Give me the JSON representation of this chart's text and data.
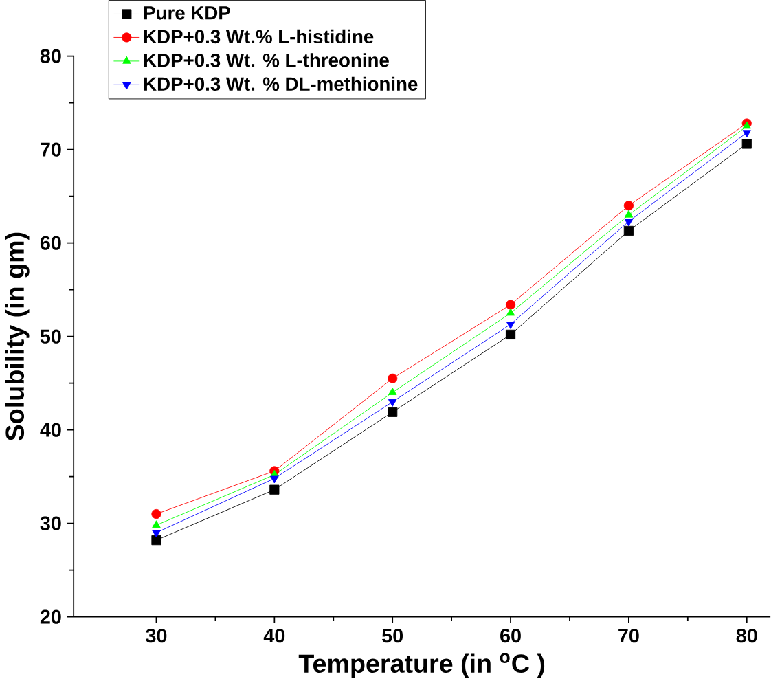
{
  "chart_data": {
    "type": "line",
    "xlabel": "Temperature (in  $^{o}$C )",
    "ylabel": "Solubility (in gm)",
    "x": [
      30,
      40,
      50,
      60,
      70,
      80
    ],
    "series": [
      {
        "name": "Pure KDP",
        "color": "#000000",
        "marker": "square",
        "values": [
          28.2,
          33.6,
          41.9,
          50.2,
          61.3,
          70.6
        ]
      },
      {
        "name": "KDP+0.3 Wt.% L-histidine",
        "color": "#ff0000",
        "marker": "circle",
        "values": [
          31.0,
          35.6,
          45.5,
          53.4,
          64.0,
          72.8
        ]
      },
      {
        "name": "KDP+0.3 Wt. % L-threonine",
        "color": "#00ff00",
        "marker": "triangle",
        "values": [
          29.8,
          35.2,
          44.0,
          52.5,
          63.0,
          72.5
        ]
      },
      {
        "name": "KDP+0.3 Wt. % DL-methionine",
        "color": "#0000ff",
        "marker": "triangle-down",
        "values": [
          29.0,
          34.8,
          43.0,
          51.3,
          62.3,
          71.8
        ]
      }
    ],
    "xlim": [
      23,
      82
    ],
    "ylim": [
      20,
      80
    ],
    "xticks": [
      30,
      40,
      50,
      60,
      70,
      80
    ],
    "yticks": [
      20,
      30,
      40,
      50,
      60,
      70,
      80
    ],
    "grid": false,
    "legend": "top left",
    "line_style": "solid"
  }
}
